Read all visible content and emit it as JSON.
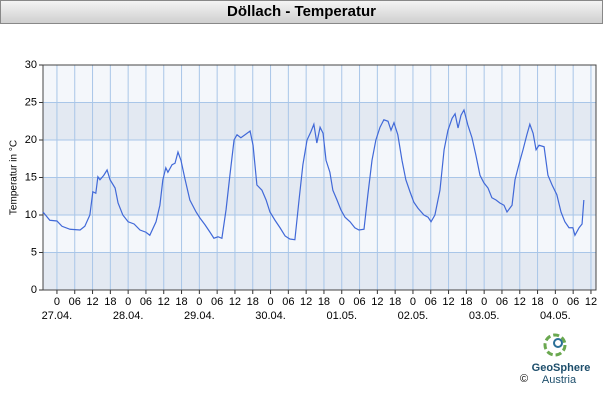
{
  "chart_data": {
    "type": "line",
    "title": "Döllach - Temperatur",
    "ylabel": "Temperatur in °C",
    "xlim": [
      -4.7,
      181.7
    ],
    "ylim": [
      0,
      30
    ],
    "yticks": [
      0,
      5,
      10,
      15,
      20,
      25,
      30
    ],
    "grid": true,
    "xticks": [
      0,
      {
        "value": 6,
        "label": "06"
      },
      12,
      18,
      {
        "value": 24,
        "label": "0"
      },
      {
        "value": 30,
        "label": "06"
      },
      {
        "value": 36,
        "label": "12"
      },
      {
        "value": 42,
        "label": "18"
      },
      {
        "value": 48,
        "label": "0"
      },
      {
        "value": 54,
        "label": "06"
      },
      {
        "value": 60,
        "label": "12"
      },
      {
        "value": 66,
        "label": "18"
      },
      {
        "value": 72,
        "label": "0"
      },
      {
        "value": 78,
        "label": "06"
      },
      {
        "value": 84,
        "label": "12"
      },
      {
        "value": 90,
        "label": "18"
      },
      {
        "value": 96,
        "label": "0"
      },
      {
        "value": 102,
        "label": "06"
      },
      {
        "value": 108,
        "label": "12"
      },
      {
        "value": 114,
        "label": "18"
      },
      {
        "value": 120,
        "label": "0"
      },
      {
        "value": 126,
        "label": "06"
      },
      {
        "value": 132,
        "label": "12"
      },
      {
        "value": 138,
        "label": "18"
      },
      {
        "value": 144,
        "label": "0"
      },
      {
        "value": 150,
        "label": "06"
      },
      {
        "value": 156,
        "label": "12"
      },
      {
        "value": 162,
        "label": "18"
      },
      {
        "value": 168,
        "label": "0"
      },
      {
        "value": 174,
        "label": "06"
      },
      {
        "value": 180,
        "label": "12"
      }
    ],
    "xtick_dates": [
      {
        "value": 0,
        "label": "27.04."
      },
      {
        "value": 24,
        "label": "28.04."
      },
      {
        "value": 48,
        "label": "29.04."
      },
      {
        "value": 72,
        "label": "30.04."
      },
      {
        "value": 96,
        "label": "01.05."
      },
      {
        "value": 120,
        "label": "02.05."
      },
      {
        "value": 144,
        "label": "03.05."
      },
      {
        "value": 168,
        "label": "04.05."
      }
    ],
    "x": [
      -4.7,
      -2.4,
      0,
      1.7,
      4.4,
      7.8,
      9.4,
      11.1,
      12.1,
      13.1,
      13.8,
      14.5,
      15.8,
      16.9,
      17.9,
      19.6,
      20.6,
      22.2,
      24.0,
      26.0,
      28.0,
      30.0,
      31.3,
      33.4,
      34.7,
      35.7,
      36.7,
      37.4,
      38.8,
      39.8,
      40.8,
      41.8,
      43.1,
      44.8,
      46.9,
      48.2,
      49.9,
      51.6,
      52.9,
      54.3,
      55.6,
      57.0,
      58.3,
      59.7,
      60.7,
      62.0,
      63.4,
      65.1,
      66.1,
      67.4,
      69.1,
      70.5,
      71.8,
      73.5,
      75.2,
      76.9,
      78.5,
      80.2,
      81.6,
      82.9,
      84.3,
      85.6,
      86.6,
      87.6,
      88.7,
      89.7,
      90.7,
      92.0,
      93.0,
      94.4,
      95.7,
      97.1,
      98.8,
      100.4,
      101.8,
      103.5,
      104.8,
      106.2,
      107.5,
      108.9,
      110.2,
      111.6,
      112.6,
      113.6,
      114.9,
      116.3,
      117.6,
      119.0,
      120.3,
      121.7,
      123.7,
      125.1,
      126.1,
      127.4,
      129.1,
      130.5,
      131.8,
      133.2,
      134.2,
      135.2,
      136.2,
      137.2,
      138.5,
      139.9,
      141.2,
      142.6,
      143.9,
      145.3,
      146.6,
      148.0,
      149.3,
      150.7,
      151.7,
      153.4,
      154.4,
      155.7,
      157.1,
      158.4,
      159.4,
      160.5,
      161.5,
      162.5,
      164.2,
      165.5,
      166.9,
      168.5,
      169.9,
      171.2,
      172.6,
      173.9,
      174.6,
      176.0,
      177.0,
      177.6
    ],
    "series": [
      {
        "color": "#4169d8",
        "values": [
          10.4,
          9.3,
          9.2,
          8.5,
          8.1,
          8.0,
          8.5,
          10.0,
          13.1,
          12.9,
          15.1,
          14.7,
          15.3,
          16.0,
          14.7,
          13.6,
          11.6,
          10.0,
          9.1,
          8.8,
          8.0,
          7.7,
          7.3,
          9.1,
          11.3,
          14.7,
          16.3,
          15.7,
          16.7,
          16.9,
          18.4,
          17.3,
          14.9,
          12.0,
          10.4,
          9.6,
          8.7,
          7.7,
          6.9,
          7.1,
          6.9,
          10.7,
          15.3,
          20.0,
          20.7,
          20.3,
          20.7,
          21.2,
          19.3,
          14.0,
          13.3,
          12.0,
          10.4,
          9.3,
          8.3,
          7.2,
          6.8,
          6.7,
          12.0,
          16.7,
          20.0,
          21.1,
          22.1,
          19.6,
          21.7,
          20.9,
          17.3,
          15.7,
          13.3,
          12.0,
          10.7,
          9.7,
          9.1,
          8.3,
          8.0,
          8.1,
          12.7,
          17.3,
          20.0,
          21.7,
          22.7,
          22.5,
          21.3,
          22.3,
          20.7,
          17.3,
          14.7,
          13.1,
          11.7,
          10.9,
          10.0,
          9.7,
          9.1,
          10.0,
          13.3,
          18.7,
          21.3,
          22.9,
          23.5,
          21.6,
          23.3,
          24.0,
          22.0,
          20.3,
          18.0,
          15.3,
          14.3,
          13.6,
          12.3,
          12.0,
          11.6,
          11.3,
          10.4,
          11.3,
          14.7,
          16.7,
          18.7,
          20.7,
          22.1,
          20.9,
          18.7,
          19.3,
          19.1,
          15.3,
          14.0,
          12.7,
          10.4,
          9.1,
          8.3,
          8.3,
          7.3,
          8.3,
          8.8,
          12.0
        ]
      }
    ]
  },
  "logo": {
    "name": "GeoSphere",
    "sub": "Austria",
    "copyright": "©"
  }
}
